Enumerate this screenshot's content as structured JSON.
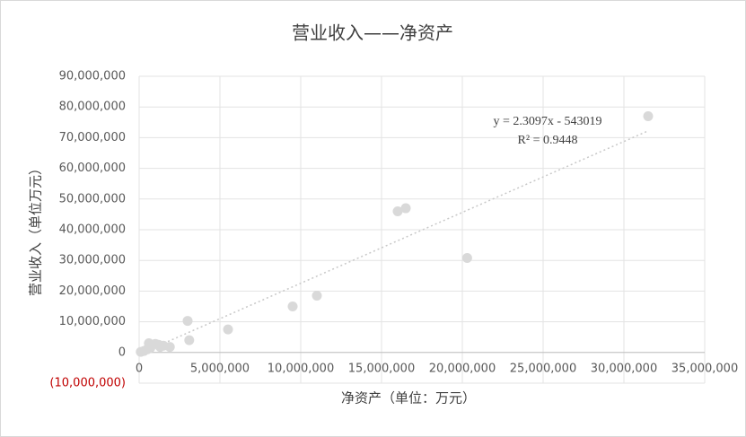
{
  "chart_data": {
    "type": "scatter",
    "title": "营业收入——净资产",
    "x_label": "净资产（单位：万元）",
    "y_label": "营业收入（单位万元）",
    "color": "#d9d9d9",
    "grid": true,
    "negative_tick_color": "#c00000",
    "xlim": [
      0,
      35000000
    ],
    "ylim": [
      -10000000,
      90000000
    ],
    "xticks": [
      0,
      {
        "value": 5000000,
        "label": "5,000,000"
      },
      {
        "value": 10000000,
        "label": "10,000,000"
      },
      {
        "value": 15000000,
        "label": "15,000,000"
      },
      {
        "value": 20000000,
        "label": "20,000,000"
      },
      {
        "value": 25000000,
        "label": "25,000,000"
      },
      {
        "value": 30000000,
        "label": "30,000,000"
      },
      {
        "value": 35000000,
        "label": "35,000,000"
      }
    ],
    "yticks": [
      {
        "value": -10000000,
        "label": "(10,000,000)"
      },
      0,
      {
        "value": 10000000,
        "label": "10,000,000"
      },
      {
        "value": 20000000,
        "label": "20,000,000"
      },
      {
        "value": 30000000,
        "label": "30,000,000"
      },
      {
        "value": 40000000,
        "label": "40,000,000"
      },
      {
        "value": 50000000,
        "label": "50,000,000"
      },
      {
        "value": 60000000,
        "label": "60,000,000"
      },
      {
        "value": 70000000,
        "label": "70,000,000"
      },
      {
        "value": 80000000,
        "label": "80,000,000"
      },
      {
        "value": 90000000,
        "label": "90,000,000"
      }
    ],
    "x": [
      31500000,
      16500000,
      16000000,
      20300000,
      11000000,
      9500000,
      5500000,
      3000000,
      3100000,
      600000,
      800000,
      1000000,
      1200000,
      1500000,
      1900000,
      500000,
      300000,
      100000,
      700000,
      1300000
    ],
    "values": [
      77000000,
      47000000,
      46000000,
      30800000,
      18500000,
      15000000,
      7500000,
      10300000,
      4000000,
      3000000,
      2500000,
      2800000,
      2500000,
      2200000,
      1800000,
      1000000,
      500000,
      200000,
      1500000,
      1800000
    ],
    "trendline": {
      "slope": 2.3097,
      "intercept": -543019,
      "equation": "y = 2.3097x - 543019",
      "r_squared": "R² = 0.9448"
    }
  }
}
